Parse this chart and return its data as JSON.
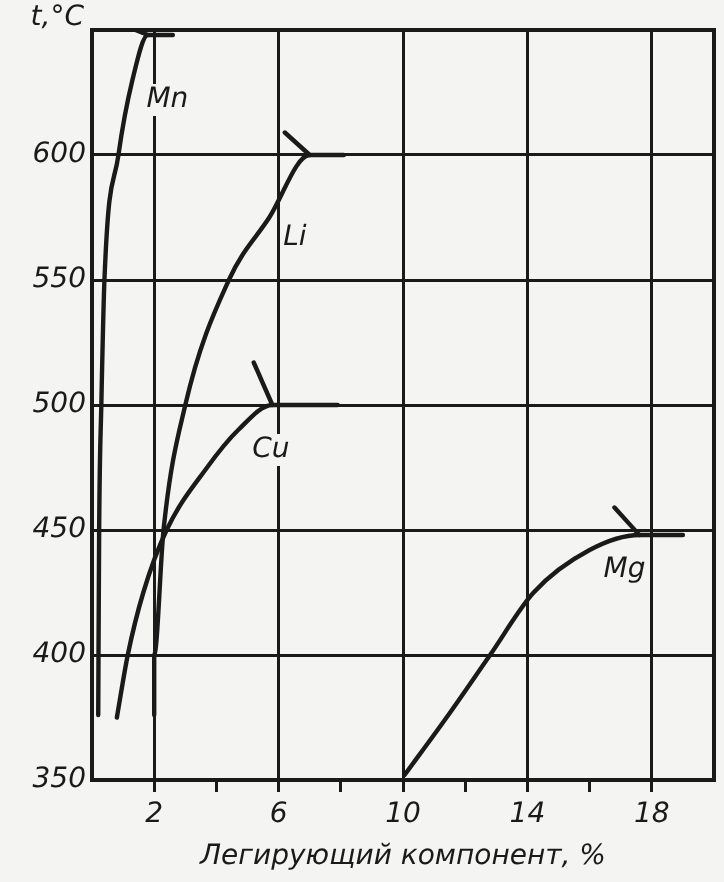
{
  "chart_data": {
    "type": "line",
    "xlabel": "Легирующий компонент, %",
    "ylabel": "t,°C",
    "xlim": [
      0,
      20
    ],
    "ylim": [
      350,
      650
    ],
    "xticks": [
      2,
      {
        "value": 4,
        "label": null
      },
      6,
      {
        "value": 8,
        "label": null
      },
      10,
      {
        "value": 12,
        "label": null
      },
      14,
      {
        "value": 16,
        "label": null
      },
      18
    ],
    "yticks": [
      350,
      400,
      450,
      500,
      550,
      600
    ],
    "grid": true,
    "legend": false,
    "marker": "none",
    "line_style": "solid",
    "series": [
      {
        "name": "Mn",
        "color": "#1a1a1a",
        "x": [
          0.2,
          0.23,
          0.3,
          0.4,
          0.85,
          1.3,
          1.8,
          2.6
        ],
        "values": [
          376,
          450,
          500,
          550,
          600,
          630,
          648,
          648
        ]
      },
      {
        "name": "Li",
        "color": "#1a1a1a",
        "x": [
          2.0,
          2.0,
          2.3,
          3.0,
          4.4,
          5.7,
          7.0,
          8.1
        ],
        "values": [
          376,
          400,
          450,
          500,
          550,
          575,
          600,
          600
        ]
      },
      {
        "name": "Cu",
        "color": "#1a1a1a",
        "x": [
          0.8,
          1.15,
          1.65,
          2.4,
          3.7,
          4.7,
          5.8,
          7.9
        ],
        "values": [
          375,
          400,
          425,
          450,
          475,
          490,
          500,
          500
        ]
      },
      {
        "name": "Mg",
        "color": "#1a1a1a",
        "x": [
          10.05,
          11.4,
          12.8,
          14.2,
          16.0,
          17.6,
          19.0
        ],
        "values": [
          352,
          375,
          400,
          425,
          442,
          448,
          448
        ]
      },
      {
        "color": "#1a1a1a",
        "x": [
          1.4,
          1.8,
          null,
          6.2,
          7.0,
          null,
          5.2,
          5.8,
          null,
          16.8,
          17.6
        ],
        "values": [
          650,
          648,
          null,
          609,
          600,
          null,
          517,
          500,
          null,
          459,
          448
        ]
      }
    ]
  }
}
